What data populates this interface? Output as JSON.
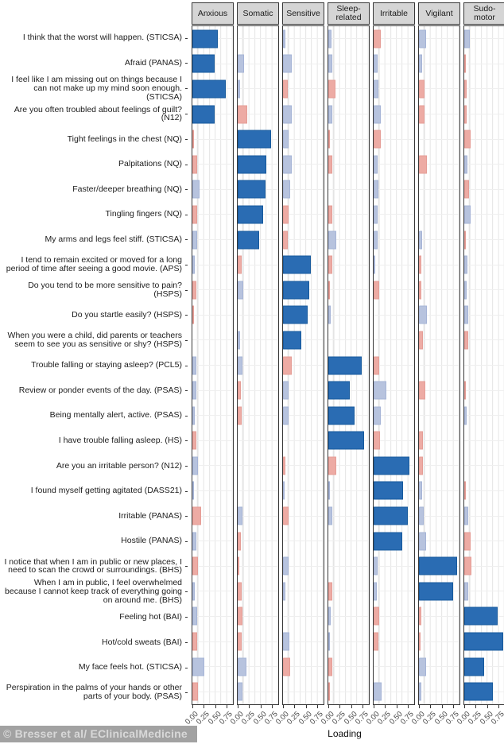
{
  "watermark": "© Bresser et al/ EClinicalMedicine",
  "chart_data": {
    "type": "bar",
    "title": "",
    "xlabel": "Loading",
    "x_ticks": [
      "0.00",
      "0.25",
      "0.50",
      "0.75"
    ],
    "x_tick_values": [
      0,
      0.25,
      0.5,
      0.75
    ],
    "xlim": [
      0,
      0.89
    ],
    "grid": "minor vertical gridlines every 0.125, light gray; faint horizontal line per item row",
    "legend_position": "none",
    "facets": [
      "Anxious",
      "Somatic",
      "Sensitive",
      "Sleep-related",
      "Irritable",
      "Vigilant",
      "Sudo-motor"
    ],
    "colors": {
      "P": "#2a6cb3",
      "B": "#b7c3de",
      "R": "#edaba4",
      "P_meaning": "dark blue: primary factor loading",
      "B_meaning": "light blue: small positive cross-loading",
      "R_meaning": "light red: small negative cross-loading"
    },
    "items": [
      {
        "label": "I think that the worst will happen. (STICSA)",
        "loadings": [
          [
            0.56,
            "P"
          ],
          [
            0,
            ""
          ],
          [
            0.06,
            "B"
          ],
          [
            0.07,
            "B"
          ],
          [
            0.16,
            "R"
          ],
          [
            0.15,
            "B"
          ],
          [
            0.12,
            "B"
          ]
        ]
      },
      {
        "label": "Afraid (PANAS)",
        "loadings": [
          [
            0.49,
            "P"
          ],
          [
            0.14,
            "B"
          ],
          [
            0.2,
            "B"
          ],
          [
            0.09,
            "B"
          ],
          [
            0.08,
            "B"
          ],
          [
            0.07,
            "B"
          ],
          [
            0.03,
            "R"
          ]
        ]
      },
      {
        "label": "I feel like I am missing out on things because I can not make up my mind soon enough. (STICSA)",
        "loadings": [
          [
            0.73,
            "P"
          ],
          [
            0.06,
            "B"
          ],
          [
            0.1,
            "R"
          ],
          [
            0.15,
            "R"
          ],
          [
            0.1,
            "B"
          ],
          [
            0.13,
            "R"
          ],
          [
            0.06,
            "R"
          ]
        ]
      },
      {
        "label": "Are you often troubled about feelings of guilt? (N12)",
        "loadings": [
          [
            0.49,
            "P"
          ],
          [
            0.21,
            "R"
          ],
          [
            0.2,
            "B"
          ],
          [
            0.08,
            "B"
          ],
          [
            0.15,
            "B"
          ],
          [
            0.13,
            "R"
          ],
          [
            0.05,
            "R"
          ]
        ]
      },
      {
        "label": "Tight feelings in the chest (NQ)",
        "loadings": [
          [
            0.03,
            "R"
          ],
          [
            0.73,
            "P"
          ],
          [
            0.13,
            "B"
          ],
          [
            0.02,
            "R"
          ],
          [
            0.16,
            "R"
          ],
          [
            0,
            ""
          ],
          [
            0.14,
            "R"
          ]
        ]
      },
      {
        "label": "Palpitations (NQ)",
        "loadings": [
          [
            0.1,
            "R"
          ],
          [
            0.63,
            "P"
          ],
          [
            0.19,
            "B"
          ],
          [
            0.08,
            "R"
          ],
          [
            0.08,
            "B"
          ],
          [
            0.17,
            "R"
          ],
          [
            0.07,
            "B"
          ]
        ]
      },
      {
        "label": "Faster/deeper breathing  (NQ)",
        "loadings": [
          [
            0.15,
            "B"
          ],
          [
            0.62,
            "P"
          ],
          [
            0.15,
            "B"
          ],
          [
            0,
            ""
          ],
          [
            0.1,
            "B"
          ],
          [
            0,
            ""
          ],
          [
            0.1,
            "R"
          ]
        ]
      },
      {
        "label": "Tingling fingers (NQ)",
        "loadings": [
          [
            0.1,
            "R"
          ],
          [
            0.56,
            "P"
          ],
          [
            0.12,
            "R"
          ],
          [
            0.09,
            "R"
          ],
          [
            0.09,
            "B"
          ],
          [
            0,
            ""
          ],
          [
            0.14,
            "B"
          ]
        ]
      },
      {
        "label": "My arms and legs feel stiff. (STICSA)",
        "loadings": [
          [
            0.11,
            "B"
          ],
          [
            0.48,
            "P"
          ],
          [
            0.1,
            "R"
          ],
          [
            0.17,
            "B"
          ],
          [
            0.08,
            "B"
          ],
          [
            0.07,
            "B"
          ],
          [
            0.03,
            "R"
          ]
        ]
      },
      {
        "label": "I tend to remain excited or moved for a long period of time after seeing a good movie. (APS)",
        "loadings": [
          [
            0.05,
            "B"
          ],
          [
            0.09,
            "R"
          ],
          [
            0.61,
            "P"
          ],
          [
            0.09,
            "R"
          ],
          [
            0.03,
            "B"
          ],
          [
            0.06,
            "R"
          ],
          [
            0.07,
            "B"
          ]
        ]
      },
      {
        "label": "Do you tend to be more sensitive to pain? (HSPS)",
        "loadings": [
          [
            0.08,
            "R"
          ],
          [
            0.13,
            "B"
          ],
          [
            0.57,
            "P"
          ],
          [
            0.04,
            "R"
          ],
          [
            0.12,
            "R"
          ],
          [
            0.05,
            "R"
          ],
          [
            0.06,
            "B"
          ]
        ]
      },
      {
        "label": "Do you startle easily? (HSPS)",
        "loadings": [
          [
            0.02,
            "R"
          ],
          [
            0,
            ""
          ],
          [
            0.55,
            "P"
          ],
          [
            0.06,
            "B"
          ],
          [
            0,
            ""
          ],
          [
            0.17,
            "B"
          ],
          [
            0.08,
            "B"
          ]
        ]
      },
      {
        "label": "When you were a child, did parents or teachers seem to see you as sensitive or shy? (HSPS)",
        "loadings": [
          [
            0,
            ""
          ],
          [
            0.06,
            "B"
          ],
          [
            0.41,
            "P"
          ],
          [
            0,
            ""
          ],
          [
            0,
            ""
          ],
          [
            0.08,
            "R"
          ],
          [
            0.09,
            "R"
          ]
        ]
      },
      {
        "label": "Trouble falling or staying asleep? (PCL5)",
        "loadings": [
          [
            0.09,
            "B"
          ],
          [
            0.1,
            "B"
          ],
          [
            0.19,
            "R"
          ],
          [
            0.74,
            "P"
          ],
          [
            0.12,
            "R"
          ],
          [
            0,
            ""
          ],
          [
            0,
            ""
          ]
        ]
      },
      {
        "label": "Review or ponder events of the day. (PSAS)",
        "loadings": [
          [
            0.08,
            "B"
          ],
          [
            0.07,
            "R"
          ],
          [
            0.12,
            "B"
          ],
          [
            0.47,
            "P"
          ],
          [
            0.28,
            "B"
          ],
          [
            0.14,
            "R"
          ],
          [
            0.04,
            "R"
          ]
        ]
      },
      {
        "label": "Being mentally alert, active. (PSAS)",
        "loadings": [
          [
            0.06,
            "B"
          ],
          [
            0.09,
            "R"
          ],
          [
            0.12,
            "B"
          ],
          [
            0.58,
            "P"
          ],
          [
            0.16,
            "B"
          ],
          [
            0,
            ""
          ],
          [
            0.05,
            "B"
          ]
        ]
      },
      {
        "label": "I have trouble falling asleep. (HS)",
        "loadings": [
          [
            0.09,
            "R"
          ],
          [
            0,
            ""
          ],
          [
            0,
            ""
          ],
          [
            0.78,
            "P"
          ],
          [
            0.14,
            "R"
          ],
          [
            0.08,
            "R"
          ],
          [
            0,
            ""
          ]
        ]
      },
      {
        "label": "Are you an irritable person? (N12)",
        "loadings": [
          [
            0.12,
            "B"
          ],
          [
            0,
            ""
          ],
          [
            0.06,
            "R"
          ],
          [
            0.18,
            "R"
          ],
          [
            0.78,
            "P"
          ],
          [
            0.08,
            "R"
          ],
          [
            0,
            ""
          ]
        ]
      },
      {
        "label": "I found myself getting agitated (DASS21)",
        "loadings": [
          [
            0.02,
            "B"
          ],
          [
            0,
            ""
          ],
          [
            0.02,
            "B"
          ],
          [
            0.02,
            "B"
          ],
          [
            0.65,
            "P"
          ],
          [
            0.07,
            "B"
          ],
          [
            0.02,
            "R"
          ]
        ]
      },
      {
        "label": "Irritable (PANAS)",
        "loadings": [
          [
            0.19,
            "R"
          ],
          [
            0.1,
            "B"
          ],
          [
            0.12,
            "R"
          ],
          [
            0.09,
            "B"
          ],
          [
            0.75,
            "P"
          ],
          [
            0.1,
            "B"
          ],
          [
            0.09,
            "B"
          ]
        ]
      },
      {
        "label": "Hostile (PANAS)",
        "loadings": [
          [
            0.09,
            "B"
          ],
          [
            0.07,
            "R"
          ],
          [
            0,
            ""
          ],
          [
            0,
            ""
          ],
          [
            0.63,
            "P"
          ],
          [
            0.16,
            "B"
          ],
          [
            0.14,
            "R"
          ]
        ]
      },
      {
        "label": "I notice that when I am in public or new places, I need to scan the crowd or surroundings. (BHS)",
        "loadings": [
          [
            0.12,
            "R"
          ],
          [
            0.02,
            "R"
          ],
          [
            0.12,
            "B"
          ],
          [
            0,
            ""
          ],
          [
            0.08,
            "B"
          ],
          [
            0.84,
            "P"
          ],
          [
            0.15,
            "R"
          ]
        ]
      },
      {
        "label": "When I am in public, I feel overwhelmed because I cannot keep track of everything going on around me. (BHS)",
        "loadings": [
          [
            0.06,
            "B"
          ],
          [
            0.08,
            "R"
          ],
          [
            0.06,
            "B"
          ],
          [
            0.09,
            "R"
          ],
          [
            0.07,
            "B"
          ],
          [
            0.76,
            "P"
          ],
          [
            0.09,
            "B"
          ]
        ]
      },
      {
        "label": "Feeling hot  (BAI)",
        "loadings": [
          [
            0.1,
            "B"
          ],
          [
            0.1,
            "R"
          ],
          [
            0,
            ""
          ],
          [
            0.05,
            "B"
          ],
          [
            0.12,
            "R"
          ],
          [
            0.05,
            "R"
          ],
          [
            0.73,
            "P"
          ]
        ]
      },
      {
        "label": "Hot/cold sweats  (BAI)",
        "loadings": [
          [
            0.11,
            "R"
          ],
          [
            0.09,
            "R"
          ],
          [
            0.14,
            "B"
          ],
          [
            0.03,
            "B"
          ],
          [
            0.1,
            "R"
          ],
          [
            0.04,
            "R"
          ],
          [
            0.85,
            "P"
          ]
        ]
      },
      {
        "label": "My face feels hot. (STICSA)",
        "loadings": [
          [
            0.27,
            "B"
          ],
          [
            0.19,
            "B"
          ],
          [
            0.16,
            "R"
          ],
          [
            0.08,
            "R"
          ],
          [
            0,
            ""
          ],
          [
            0.16,
            "B"
          ],
          [
            0.43,
            "P"
          ]
        ]
      },
      {
        "label": "Perspiration in the palms of your hands or other parts of your body. (PSAS)",
        "loadings": [
          [
            0.12,
            "R"
          ],
          [
            0.1,
            "B"
          ],
          [
            0,
            ""
          ],
          [
            0.02,
            "R"
          ],
          [
            0.17,
            "B"
          ],
          [
            0.05,
            "B"
          ],
          [
            0.63,
            "P"
          ]
        ]
      }
    ]
  }
}
